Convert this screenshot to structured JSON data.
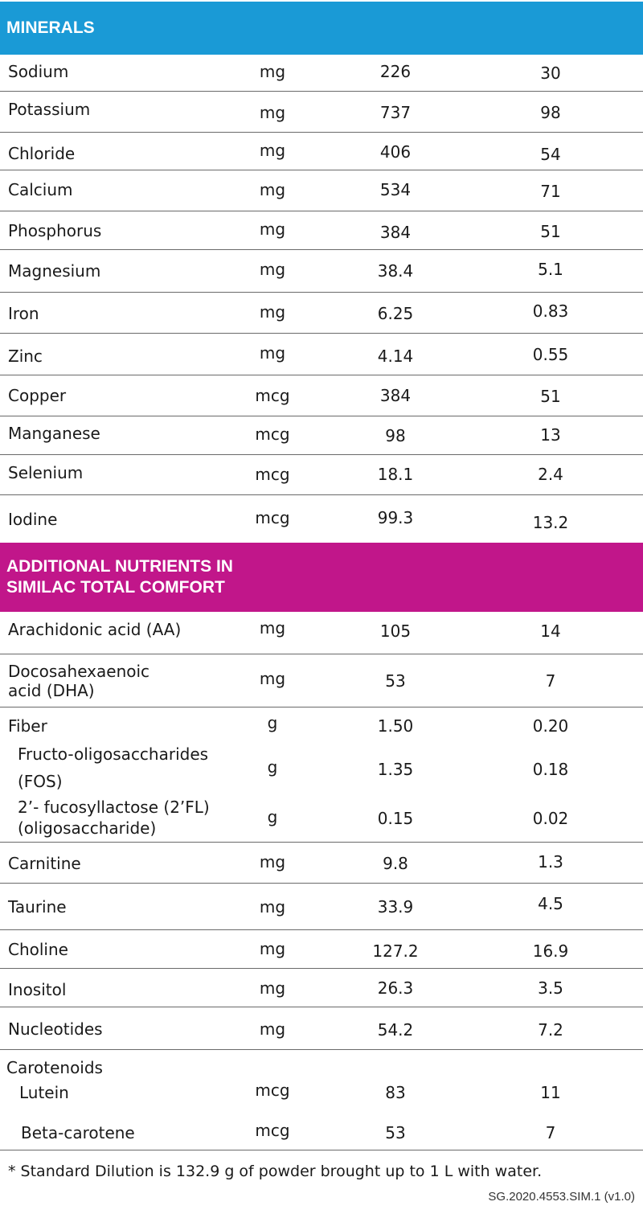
{
  "minerals": {
    "title": "MINERALS",
    "rows": [
      {
        "name": "Sodium",
        "unit": "mg",
        "v1": "226",
        "v2": "30"
      },
      {
        "name": "Potassium",
        "unit": "mg",
        "v1": "737",
        "v2": "98"
      },
      {
        "name": "Chloride",
        "unit": "mg",
        "v1": "406",
        "v2": "54"
      },
      {
        "name": "Calcium",
        "unit": "mg",
        "v1": "534",
        "v2": "71"
      },
      {
        "name": "Phosphorus",
        "unit": "mg",
        "v1": "384",
        "v2": "51"
      },
      {
        "name": "Magnesium",
        "unit": "mg",
        "v1": "38.4",
        "v2": "5.1"
      },
      {
        "name": "Iron",
        "unit": "mg",
        "v1": "6.25",
        "v2": "0.83"
      },
      {
        "name": "Zinc",
        "unit": "mg",
        "v1": "4.14",
        "v2": "0.55"
      },
      {
        "name": "Copper",
        "unit": "mcg",
        "v1": "384",
        "v2": "51"
      },
      {
        "name": "Manganese",
        "unit": "mcg",
        "v1": "98",
        "v2": "13"
      },
      {
        "name": "Selenium",
        "unit": "mcg",
        "v1": "18.1",
        "v2": "2.4"
      },
      {
        "name": "Iodine",
        "unit": "mcg",
        "v1": "99.3",
        "v2": "13.2"
      }
    ]
  },
  "additional": {
    "title_line1": "ADDITIONAL NUTRIENTS IN",
    "title_line2": "SIMILAC TOTAL COMFORT",
    "rows": [
      {
        "name": "Arachidonic acid (AA)",
        "unit": "mg",
        "v1": "105",
        "v2": "14"
      },
      {
        "name_line1": "Docosahexaenoic",
        "name_line2": "acid (DHA)",
        "unit": "mg",
        "v1": "53",
        "v2": "7"
      },
      {
        "name": "Fiber",
        "unit": "g",
        "v1": "1.50",
        "v2": "0.20"
      },
      {
        "name_line1": "Fructo-oligosaccharides",
        "name_line2": "(FOS)",
        "unit": "g",
        "v1": "1.35",
        "v2": "0.18"
      },
      {
        "name_line1": "2’- fucosyllactose (2’FL)",
        "name_line2": "(oligosaccharide)",
        "unit": "g",
        "v1": "0.15",
        "v2": "0.02"
      },
      {
        "name": "Carnitine",
        "unit": "mg",
        "v1": "9.8",
        "v2": "1.3"
      },
      {
        "name": "Taurine",
        "unit": "mg",
        "v1": "33.9",
        "v2": "4.5"
      },
      {
        "name": "Choline",
        "unit": "mg",
        "v1": "127.2",
        "v2": "16.9"
      },
      {
        "name": "Inositol",
        "unit": "mg",
        "v1": "26.3",
        "v2": "3.5"
      },
      {
        "name": "Nucleotides",
        "unit": "mg",
        "v1": "54.2",
        "v2": "7.2"
      },
      {
        "name": "Carotenoids"
      },
      {
        "name": "Lutein",
        "unit": "mcg",
        "v1": "83",
        "v2": "11"
      },
      {
        "name": "Beta-carotene",
        "unit": "mcg",
        "v1": "53",
        "v2": "7"
      }
    ]
  },
  "footnote": "* Standard Dilution is 132.9 g of powder brought up to 1 L with water.",
  "code": "SG.2020.4553.SIM.1 (v1.0)"
}
